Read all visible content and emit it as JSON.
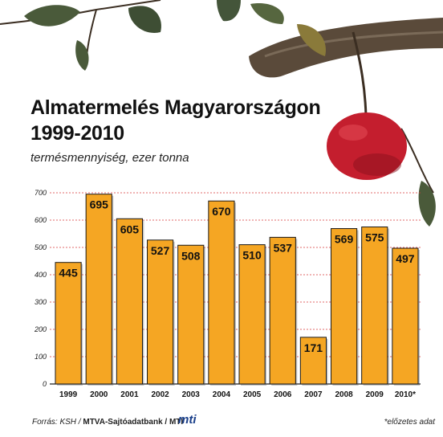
{
  "title_line1": "Almatermelés Magyarországon",
  "title_line2": "1999-2010",
  "subtitle": "termésmennyiség, ezer tonna",
  "footer": {
    "source_prefix": "Forrás: KSH / ",
    "source_bold": "MTVA-Sajtóadatbank / MTI",
    "logo": "mti",
    "note": "*előzetes adat"
  },
  "colors": {
    "bar": "#f5a623",
    "bar_border": "#1a1a1a",
    "grid": "#d83a3a",
    "apple": "#c41e2e"
  },
  "chart_data": {
    "type": "bar",
    "categories": [
      "1999",
      "2000",
      "2001",
      "2002",
      "2003",
      "2004",
      "2005",
      "2006",
      "2007",
      "2008",
      "2009",
      "2010*"
    ],
    "values": [
      445,
      695,
      605,
      527,
      508,
      670,
      510,
      537,
      171,
      569,
      575,
      497
    ],
    "ylim": [
      0,
      700
    ],
    "yticks": [
      0,
      100,
      200,
      300,
      400,
      500,
      600,
      700
    ],
    "grid": true,
    "data_labels": true,
    "xlabel": "",
    "ylabel": ""
  }
}
